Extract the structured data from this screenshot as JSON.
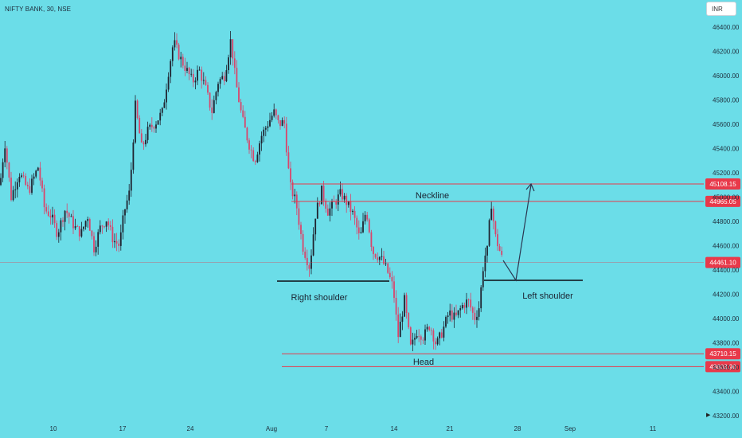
{
  "header": {
    "symbol": "NIFTY BANK, 30, NSE",
    "currency": "INR"
  },
  "chart_data": {
    "type": "candlestick",
    "title": "NIFTY BANK, 30, NSE",
    "yaxis": {
      "ticks": [
        43200,
        43400,
        43600,
        43800,
        44000,
        44200,
        44400,
        44600,
        44800,
        45000,
        45200,
        45400,
        45600,
        45800,
        46000,
        46200,
        46400
      ],
      "range": [
        43150,
        46480
      ]
    },
    "xaxis": {
      "ticks": [
        "10",
        "17",
        "24",
        "Aug",
        "7",
        "14",
        "21",
        "28",
        "Sep",
        "11"
      ]
    },
    "price_levels": [
      {
        "value": 45108.15,
        "label": "45108.15",
        "color": "#e8394a"
      },
      {
        "value": 44965.05,
        "label": "44965.05",
        "color": "#e8394a"
      },
      {
        "value": 44461.1,
        "label": "44461.10",
        "color": "#e8394a"
      },
      {
        "value": 43710.15,
        "label": "43710.15",
        "color": "#e8394a"
      },
      {
        "value": 43603.9,
        "label": "43603.90",
        "color": "#e8394a"
      }
    ],
    "annotations": [
      "Neckline",
      "Right shoulder",
      "Head",
      "Left shoulder"
    ],
    "price_path": [
      [
        0,
        45100
      ],
      [
        6,
        45450
      ],
      [
        14,
        45000
      ],
      [
        24,
        45200
      ],
      [
        36,
        45050
      ],
      [
        48,
        45250
      ],
      [
        56,
        44900
      ],
      [
        64,
        44850
      ],
      [
        72,
        44700
      ],
      [
        82,
        44900
      ],
      [
        94,
        44750
      ],
      [
        102,
        44700
      ],
      [
        110,
        44850
      ],
      [
        118,
        44580
      ],
      [
        126,
        44750
      ],
      [
        134,
        44820
      ],
      [
        142,
        44650
      ],
      [
        150,
        44600
      ],
      [
        156,
        44880
      ],
      [
        163,
        45050
      ],
      [
        170,
        45750
      ],
      [
        178,
        45400
      ],
      [
        186,
        45550
      ],
      [
        196,
        45620
      ],
      [
        204,
        45700
      ],
      [
        212,
        46050
      ],
      [
        218,
        46280
      ],
      [
        226,
        46150
      ],
      [
        234,
        46050
      ],
      [
        242,
        45950
      ],
      [
        250,
        46050
      ],
      [
        258,
        45900
      ],
      [
        266,
        45700
      ],
      [
        274,
        45950
      ],
      [
        282,
        46000
      ],
      [
        290,
        46300
      ],
      [
        296,
        45950
      ],
      [
        304,
        45650
      ],
      [
        312,
        45450
      ],
      [
        320,
        45300
      ],
      [
        328,
        45500
      ],
      [
        336,
        45600
      ],
      [
        344,
        45700
      ],
      [
        350,
        45600
      ],
      [
        357,
        45620
      ],
      [
        364,
        45100
      ],
      [
        372,
        44950
      ],
      [
        380,
        44600
      ],
      [
        389,
        44420
      ],
      [
        396,
        44850
      ],
      [
        404,
        45050
      ],
      [
        412,
        44880
      ],
      [
        420,
        44950
      ],
      [
        428,
        45030
      ],
      [
        436,
        44950
      ],
      [
        444,
        44850
      ],
      [
        452,
        44650
      ],
      [
        460,
        44900
      ],
      [
        468,
        44550
      ],
      [
        478,
        44500
      ],
      [
        486,
        44400
      ],
      [
        494,
        44250
      ],
      [
        500,
        43850
      ],
      [
        508,
        44150
      ],
      [
        516,
        43750
      ],
      [
        524,
        43900
      ],
      [
        532,
        43850
      ],
      [
        540,
        43950
      ],
      [
        548,
        43780
      ],
      [
        556,
        43900
      ],
      [
        564,
        44050
      ],
      [
        572,
        44000
      ],
      [
        580,
        44100
      ],
      [
        588,
        44150
      ],
      [
        596,
        44000
      ],
      [
        602,
        44100
      ],
      [
        608,
        44500
      ],
      [
        612,
        44560
      ],
      [
        617,
        44960
      ],
      [
        622,
        44680
      ],
      [
        628,
        44550
      ],
      [
        632,
        44461
      ]
    ]
  }
}
